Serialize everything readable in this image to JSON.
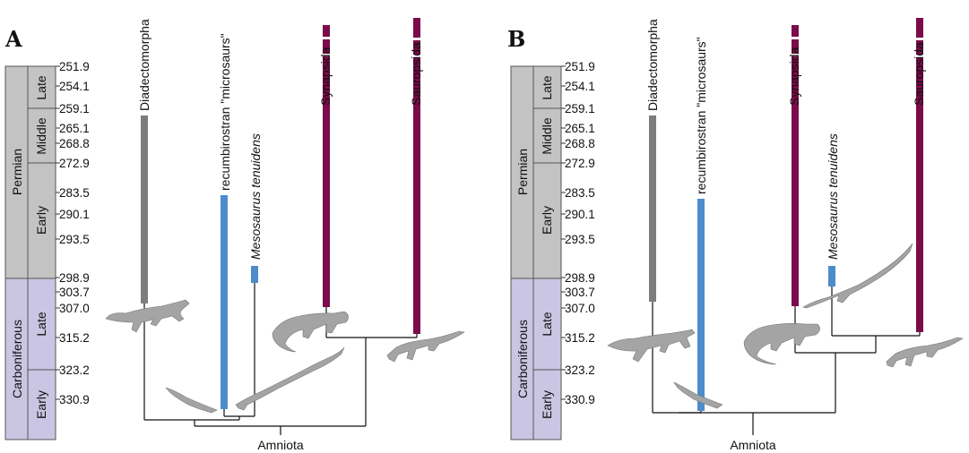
{
  "colors": {
    "permian_box": "#c3c3c3",
    "carboniferous_box": "#cac5e2",
    "diadectomorpha": "#7d7d7d",
    "microsaurs": "#4d8ccc",
    "mesosaurus": "#4d8ccc",
    "synapsida": "#7b0b4a",
    "sauropsida": "#7b0b4a",
    "silhouette": "#a4a4a4"
  },
  "ages": [
    "251.9",
    "254.1",
    "259.1",
    "265.1",
    "268.8",
    "272.9",
    "283.5",
    "290.1",
    "293.5",
    "298.9",
    "303.7",
    "307.0",
    "315.2",
    "323.2",
    "330.9"
  ],
  "periods": {
    "permian": "Permian",
    "carboniferous": "Carboniferous",
    "epochs": {
      "late": "Late",
      "middle": "Middle",
      "early": "Early"
    }
  },
  "panels": [
    {
      "letter": "A",
      "taxa": {
        "diadectomorpha": "Diadectomorpha",
        "microsaurs": "recumbirostran \"microsaurs\"",
        "mesosaurus": "Mesosaurus tenuidens",
        "synapsida": "Synapsida",
        "sauropsida": "Sauropsida"
      },
      "clade": "Amniota"
    },
    {
      "letter": "B",
      "taxa": {
        "diadectomorpha": "Diadectomorpha",
        "microsaurs": "recumbirostran \"microsaurs\"",
        "mesosaurus": "Mesosaurus tenuidens",
        "synapsida": "Synapsida",
        "sauropsida": "Sauropsida"
      },
      "clade": "Amniota"
    }
  ]
}
